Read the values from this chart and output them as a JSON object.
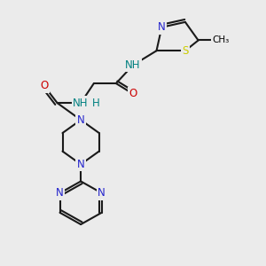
{
  "background_color": "#ebebeb",
  "atom_colors": {
    "C": "#000000",
    "N": "#2222cc",
    "O": "#cc0000",
    "S": "#cccc00",
    "NH": "#008080"
  },
  "bond_color": "#1a1a1a",
  "bond_lw": 1.5,
  "double_sep": 0.1,
  "fs": 8.5
}
